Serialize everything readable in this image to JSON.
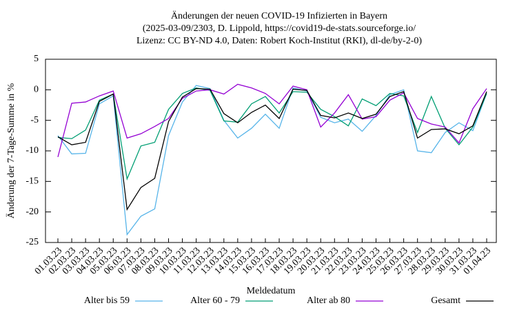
{
  "chart_data": {
    "type": "line",
    "title": [
      "Änderungen der neuen COVID-19 Infizierten in Bayern",
      "(2025-03-09/2303, D. Lippold, https://covid19-de-stats.sourceforge.io/",
      "Lizenz: CC BY-ND 4.0, Daten: Robert Koch-Institut (RKI), dl-de/by-2-0)"
    ],
    "x_label": "Meldedatum",
    "y_label": "Änderung der 7-Tage-Summe in %",
    "categories": [
      "01.03.23",
      "02.03.23",
      "03.03.23",
      "04.03.23",
      "05.03.23",
      "06.03.23",
      "07.03.23",
      "08.03.23",
      "09.03.23",
      "10.03.23",
      "11.03.23",
      "12.03.23",
      "13.03.23",
      "14.03.23",
      "15.03.23",
      "16.03.23",
      "17.03.23",
      "18.03.23",
      "19.03.23",
      "20.03.23",
      "21.03.23",
      "22.03.23",
      "23.03.23",
      "24.03.23",
      "25.03.23",
      "26.03.23",
      "27.03.23",
      "28.03.23",
      "29.03.23",
      "30.03.23",
      "31.03.23",
      "01.04.23"
    ],
    "ylim": [
      -25,
      5
    ],
    "yticks": [
      -25,
      -20,
      -15,
      -10,
      -5,
      0,
      5
    ],
    "legend_position": "bottom",
    "series": [
      {
        "name": "Alter bis 59",
        "color": "#56b4e9",
        "values": [
          -7.5,
          -10.5,
          -10.4,
          -2.3,
          -1.0,
          -23.7,
          -20.7,
          -19.5,
          -7.5,
          -2.0,
          0.7,
          0.2,
          -5.0,
          -7.9,
          -6.3,
          -4.0,
          -6.3,
          0.3,
          -0.2,
          -4.5,
          -5.4,
          -4.8,
          -6.8,
          -4.2,
          -0.8,
          0.0,
          -10.0,
          -10.3,
          -7.0,
          -5.4,
          -6.7,
          -0.6
        ]
      },
      {
        "name": "Alter 60 - 79",
        "color": "#009e73",
        "values": [
          -7.8,
          -8.0,
          -6.6,
          -1.7,
          -0.7,
          -14.6,
          -9.2,
          -8.6,
          -3.2,
          -0.6,
          0.3,
          -0.1,
          -5.1,
          -5.3,
          -2.3,
          -1.1,
          -3.8,
          -0.3,
          -0.4,
          -3.2,
          -4.4,
          -5.9,
          -1.5,
          -2.6,
          -0.6,
          -1.0,
          -7.0,
          -1.1,
          -6.3,
          -9.0,
          -6.1,
          -0.6
        ]
      },
      {
        "name": "Alter ab 80",
        "color": "#9400d3",
        "values": [
          -11.0,
          -2.2,
          -2.0,
          -1.0,
          -0.2,
          -7.9,
          -7.2,
          -6.0,
          -4.7,
          -1.4,
          -0.2,
          0.0,
          -0.7,
          0.9,
          0.3,
          -0.6,
          -2.3,
          0.6,
          0.0,
          -6.1,
          -3.8,
          -0.8,
          -4.8,
          -4.4,
          -1.7,
          -0.5,
          -4.7,
          -5.6,
          -6.1,
          -8.7,
          -3.1,
          0.2
        ]
      },
      {
        "name": "Gesamt",
        "color": "#000000",
        "values": [
          -7.7,
          -9.0,
          -8.6,
          -1.9,
          -0.7,
          -19.6,
          -16.0,
          -14.5,
          -5.2,
          -1.2,
          0.2,
          0.1,
          -3.9,
          -5.4,
          -3.7,
          -2.5,
          -4.7,
          0.1,
          -0.1,
          -4.2,
          -4.6,
          -3.8,
          -4.7,
          -4.0,
          -1.1,
          -0.3,
          -7.9,
          -6.5,
          -6.4,
          -7.2,
          -5.9,
          -0.3
        ]
      }
    ]
  }
}
